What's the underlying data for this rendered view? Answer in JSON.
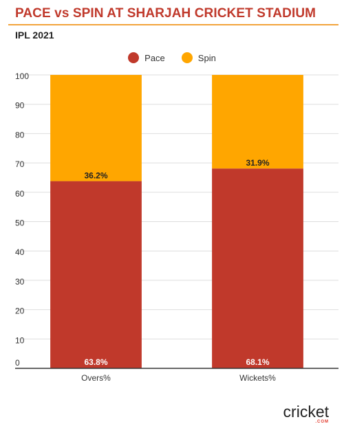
{
  "header": {
    "title": "PACE vs SPIN AT SHARJAH CRICKET STADIUM",
    "subtitle": "IPL 2021"
  },
  "legend": [
    {
      "name": "Pace",
      "color": "#c0392b"
    },
    {
      "name": "Spin",
      "color": "#ffa600"
    }
  ],
  "chart_data": {
    "type": "bar",
    "stacked": true,
    "categories": [
      "Overs%",
      "Wickets%"
    ],
    "series": [
      {
        "name": "Pace",
        "color": "#c0392b",
        "values": [
          63.8,
          68.1
        ],
        "labels": [
          "63.8%",
          "68.1%"
        ]
      },
      {
        "name": "Spin",
        "color": "#ffa600",
        "values": [
          36.2,
          31.9
        ],
        "labels": [
          "36.2%",
          "31.9%"
        ]
      }
    ],
    "ylim": [
      0,
      100
    ],
    "yticks": [
      0,
      10,
      20,
      30,
      40,
      50,
      60,
      70,
      80,
      90,
      100
    ],
    "grid": true,
    "legend_position": "top-center"
  },
  "logo": {
    "text": "cricket",
    "subtext": ".COM"
  }
}
